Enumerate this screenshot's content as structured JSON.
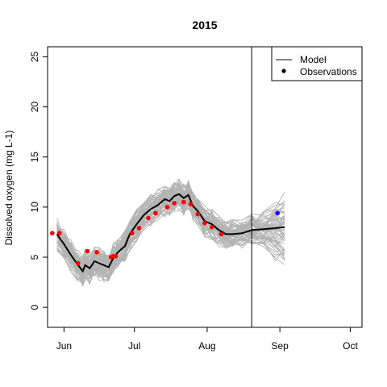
{
  "chart_data": {
    "type": "line",
    "title": "2015",
    "xlabel": "",
    "ylabel": "Dissolved oxygen (mg L-1)",
    "ylim": [
      -2,
      26
    ],
    "xlim": [
      "2015-05-25",
      "2015-10-06"
    ],
    "y_ticks": [
      0,
      5,
      10,
      15,
      20,
      25
    ],
    "x_ticks": [
      {
        "date": "2015-06-01",
        "label": "Jun"
      },
      {
        "date": "2015-07-01",
        "label": "Jul"
      },
      {
        "date": "2015-08-01",
        "label": "Aug"
      },
      {
        "date": "2015-09-01",
        "label": "Sep"
      },
      {
        "date": "2015-10-01",
        "label": "Oct"
      }
    ],
    "vertical_line": {
      "date": "2015-08-20"
    },
    "legend": {
      "position": "top-right",
      "entries": [
        {
          "label": "Model",
          "symbol": "line",
          "color": "#000000"
        },
        {
          "label": "Observations",
          "symbol": "point",
          "color": "#000000"
        }
      ]
    },
    "series": [
      {
        "name": "Model",
        "color": "#000000",
        "ensemble_color": "#b3b3b3",
        "dates": [
          "2015-05-29",
          "2015-06-01",
          "2015-06-04",
          "2015-06-07",
          "2015-06-09",
          "2015-06-10",
          "2015-06-12",
          "2015-06-14",
          "2015-06-16",
          "2015-06-18",
          "2015-06-20",
          "2015-06-22",
          "2015-06-24",
          "2015-06-27",
          "2015-06-29",
          "2015-07-02",
          "2015-07-05",
          "2015-07-08",
          "2015-07-11",
          "2015-07-14",
          "2015-07-16",
          "2015-07-18",
          "2015-07-20",
          "2015-07-22",
          "2015-07-24",
          "2015-07-26",
          "2015-07-28",
          "2015-07-31",
          "2015-08-03",
          "2015-08-06",
          "2015-08-09",
          "2015-08-12",
          "2015-08-16",
          "2015-08-20",
          "2015-08-25",
          "2015-08-30",
          "2015-09-03"
        ],
        "values": [
          7.3,
          6.3,
          5.2,
          4.2,
          3.6,
          4.2,
          3.9,
          4.6,
          4.4,
          4.2,
          4.0,
          4.9,
          5.5,
          6.1,
          7.3,
          8.3,
          9.2,
          9.8,
          10.2,
          10.8,
          10.6,
          11.1,
          11.3,
          10.9,
          11.2,
          10.1,
          9.6,
          8.6,
          8.3,
          7.7,
          7.3,
          7.3,
          7.4,
          7.7,
          7.8,
          7.9,
          8.0
        ]
      },
      {
        "name": "Observations",
        "color": "#ff0000",
        "dates": [
          "2015-05-27",
          "2015-05-30",
          "2015-06-07",
          "2015-06-11",
          "2015-06-15",
          "2015-06-21",
          "2015-06-22",
          "2015-06-23",
          "2015-06-30",
          "2015-07-03",
          "2015-07-07",
          "2015-07-10",
          "2015-07-15",
          "2015-07-18",
          "2015-07-22",
          "2015-07-25",
          "2015-07-28",
          "2015-07-31",
          "2015-08-03",
          "2015-08-07"
        ],
        "values": [
          7.4,
          7.4,
          4.4,
          5.6,
          5.5,
          5.0,
          5.1,
          5.1,
          7.4,
          7.9,
          8.9,
          9.4,
          10.0,
          10.4,
          10.5,
          10.3,
          9.3,
          8.4,
          8.0,
          7.3
        ]
      },
      {
        "name": "",
        "color": "#0000ff",
        "dates": [
          "2015-08-31"
        ],
        "values": [
          9.4
        ]
      }
    ]
  }
}
